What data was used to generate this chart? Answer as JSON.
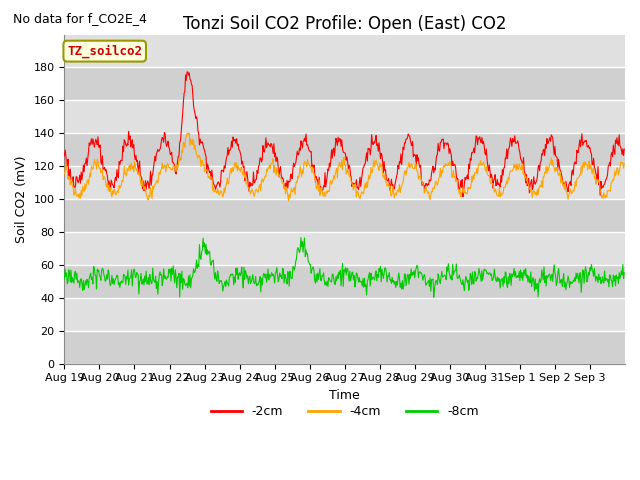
{
  "title": "Tonzi Soil CO2 Profile: Open (East) CO2",
  "subtitle": "No data for f_CO2E_4",
  "ylabel": "Soil CO2 (mV)",
  "xlabel": "Time",
  "legend_label": "TZ_soilco2",
  "series_labels": [
    "-2cm",
    "-4cm",
    "-8cm"
  ],
  "series_colors": [
    "#ff0000",
    "#ffa500",
    "#00cc00"
  ],
  "ylim": [
    0,
    200
  ],
  "yticks": [
    0,
    20,
    40,
    60,
    80,
    100,
    120,
    140,
    160,
    180
  ],
  "background_color": "#ffffff",
  "plot_bg_color": "#e0e0e0",
  "grid_color": "#ffffff",
  "title_fontsize": 12,
  "axis_fontsize": 9,
  "tick_fontsize": 8,
  "legend_fontsize": 9,
  "xtick_labels": [
    "Aug 19",
    "Aug 20",
    "Aug 21",
    "Aug 22",
    "Aug 23",
    "Aug 24",
    "Aug 25",
    "Aug 26",
    "Aug 27",
    "Aug 28",
    "Aug 29",
    "Aug 30",
    "Aug 31",
    "Sep 1",
    "Sep 2",
    "Sep 3"
  ]
}
